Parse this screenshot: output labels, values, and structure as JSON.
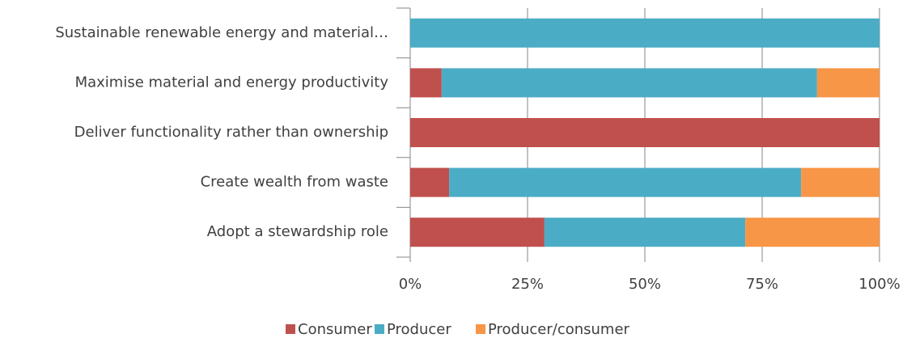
{
  "chart_data": {
    "type": "stacked_bar_horizontal",
    "categories": [
      "Sustainable renewable energy and material…",
      "Maximise material and energy productivity",
      "Deliver functionality rather than ownership",
      "Create wealth from waste",
      "Adopt a stewardship role"
    ],
    "series": [
      {
        "name": "Consumer",
        "color": "#c0504d",
        "values": [
          0,
          6.7,
          100,
          8.3,
          28.6
        ]
      },
      {
        "name": "Producer",
        "color": "#4bacc6",
        "values": [
          100,
          80,
          0,
          75,
          42.8
        ]
      },
      {
        "name": "Producer/consumer",
        "color": "#f79646",
        "values": [
          0,
          13.3,
          0,
          16.7,
          28.6
        ]
      }
    ],
    "xlim": [
      0,
      100
    ],
    "xticks": [
      {
        "value": 0,
        "label": "0%"
      },
      {
        "value": 25,
        "label": "25%"
      },
      {
        "value": 50,
        "label": "50%"
      },
      {
        "value": 75,
        "label": "75%"
      },
      {
        "value": 100,
        "label": "100%"
      }
    ],
    "grid": true,
    "legend": "bottom"
  }
}
